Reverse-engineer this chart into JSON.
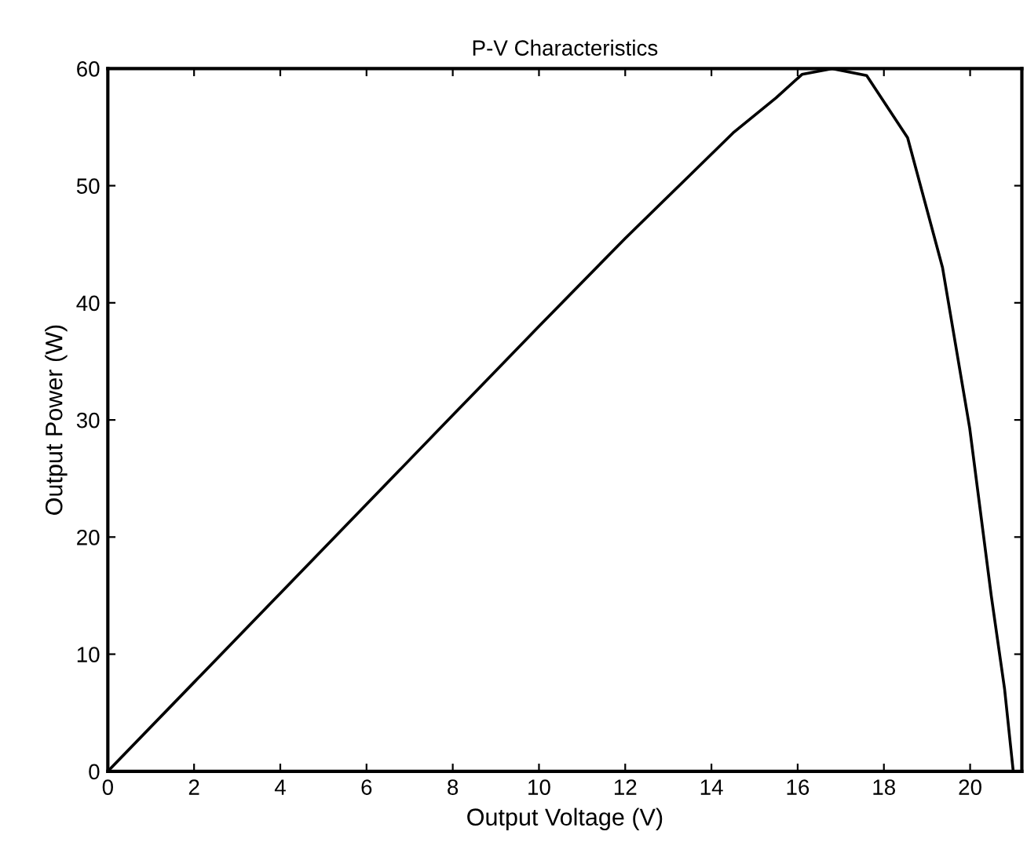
{
  "chart_data": {
    "type": "line",
    "title": "P-V Characteristics",
    "xlabel": "Output Voltage (V)",
    "ylabel": "Output Power (W)",
    "x": [
      0,
      2,
      4,
      6,
      8,
      10,
      12,
      13.5,
      14.5,
      15.5,
      16.1,
      16.8,
      17.6,
      18.55,
      19.36,
      19.99,
      20.49,
      20.8,
      21.0
    ],
    "series": [
      {
        "color": "#000000",
        "values": [
          0,
          7.6,
          15.2,
          22.8,
          30.4,
          38,
          45.5,
          50.9,
          54.5,
          57.5,
          59.5,
          60,
          59.4,
          54.1,
          43,
          29.3,
          15,
          7,
          0
        ]
      }
    ],
    "xlim": [
      0,
      21.2
    ],
    "ylim": [
      0,
      60
    ],
    "xticks": [
      0,
      2,
      4,
      6,
      8,
      10,
      12,
      14,
      16,
      18,
      20
    ],
    "yticks": [
      0,
      10,
      20,
      30,
      40,
      50,
      60
    ],
    "grid": false,
    "legend": false
  }
}
